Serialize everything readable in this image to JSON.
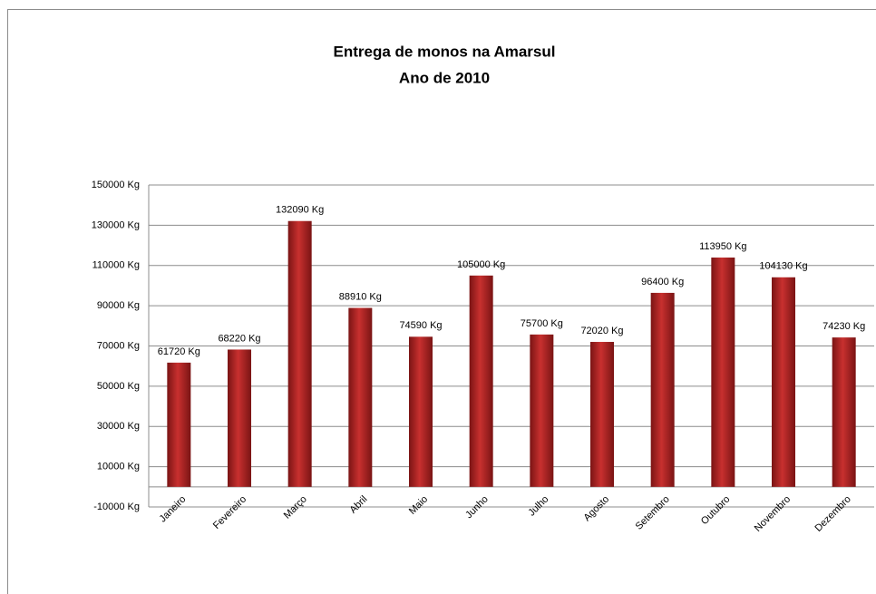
{
  "chart_data": {
    "type": "bar",
    "title": "Entrega de monos na Amarsul",
    "subtitle": "Ano de 2010",
    "categories": [
      "Janeiro",
      "Fevereiro",
      "Março",
      "Abril",
      "Maio",
      "Junho",
      "Julho",
      "Agosto",
      "Setembro",
      "Outubro",
      "Novembro",
      "Dezembro"
    ],
    "values": [
      61720,
      68220,
      132090,
      88910,
      74590,
      105000,
      75700,
      72020,
      96400,
      113950,
      104130,
      74230
    ],
    "value_labels": [
      "61720 Kg",
      "68220 Kg",
      "132090 Kg",
      "88910 Kg",
      "74590 Kg",
      "105000 Kg",
      "75700 Kg",
      "72020 Kg",
      "96400 Kg",
      "113950 Kg",
      "104130 Kg",
      "74230 Kg"
    ],
    "color": "#c8302f",
    "ylim": [
      -10000,
      150000
    ],
    "yticks": [
      {
        "value": -10000,
        "label": "-10000 Kg"
      },
      {
        "value": 10000,
        "label": "10000 Kg"
      },
      {
        "value": 30000,
        "label": "30000 Kg"
      },
      {
        "value": 50000,
        "label": "50000 Kg"
      },
      {
        "value": 70000,
        "label": "70000 Kg"
      },
      {
        "value": 90000,
        "label": "90000 Kg"
      },
      {
        "value": 110000,
        "label": "110000 Kg"
      },
      {
        "value": 130000,
        "label": "130000 Kg"
      },
      {
        "value": 150000,
        "label": "150000 Kg"
      }
    ],
    "grid": true
  }
}
